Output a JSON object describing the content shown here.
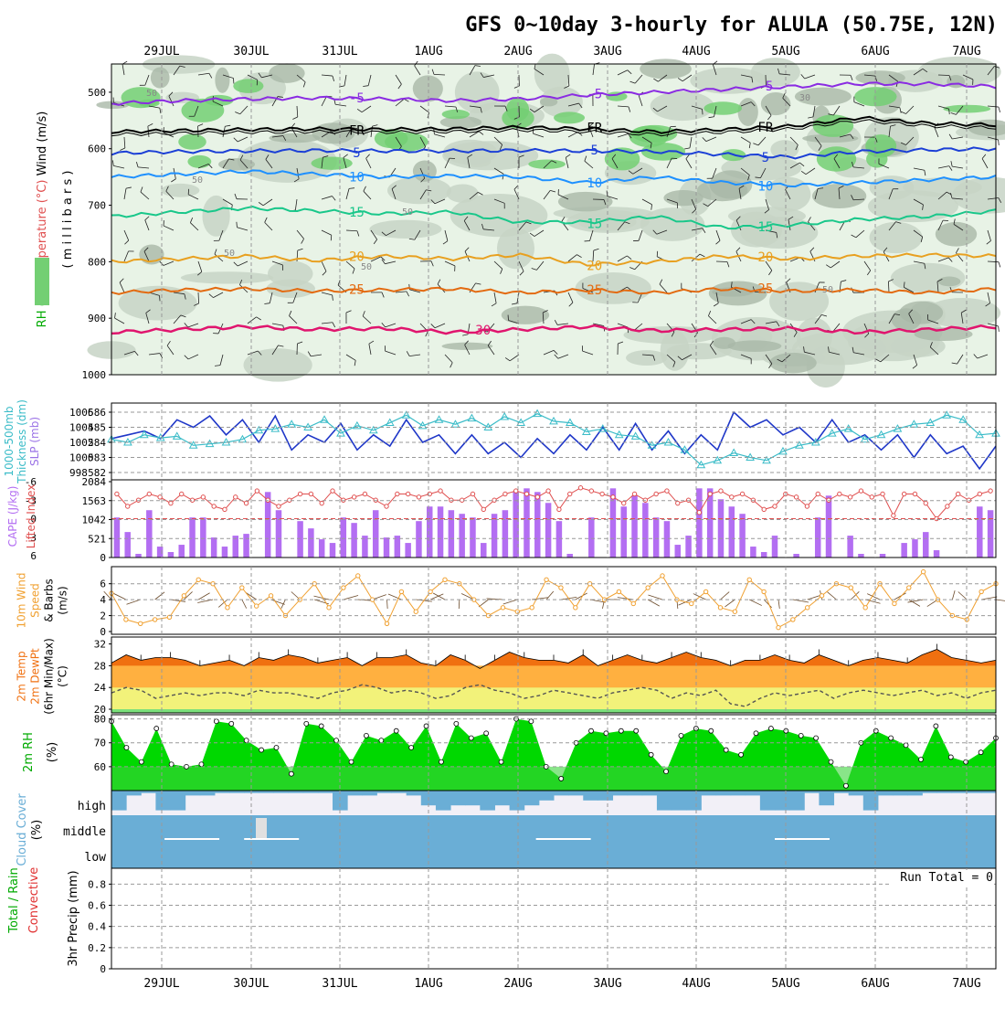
{
  "title": "GFS 0~10day 3-hourly for ALULA (50.75E, 12N)",
  "dates": [
    "29JUL",
    "30JUL",
    "31JUL",
    "1AUG",
    "2AUG",
    "3AUG",
    "4AUG",
    "5AUG",
    "6AUG",
    "7AUG"
  ],
  "colors": {
    "rh_light": "#e8f3e6",
    "rh_mid": "#c7d4c5",
    "rh_dark": "#a9b8a7",
    "rh_green": "#73cf73",
    "temp_m5": "#8a2be2",
    "temp_5": "#1b3fd6",
    "temp_10": "#1e90ff",
    "temp_15": "#19c78a",
    "temp_20": "#e8a020",
    "temp_25": "#e36a10",
    "temp_30": "#e0156e",
    "slp": "#1f37c8",
    "thickness": "#3bbcc8",
    "lifted": "#e05050",
    "cape": "#b36ef2",
    "wind": "#f0a030",
    "tmp_top": "#f07010",
    "tmp_mid": "#ffb040",
    "tmp_low": "#f2f27a",
    "rh2m": "#00d800",
    "cloud": "#6aaed6",
    "cloud_bg": "#f2f0f7"
  },
  "chart_data": [
    {
      "type": "heatmap",
      "id": "upper-air",
      "ylabel_parts": [
        "RH (%)",
        "Temperature (°C)",
        "Wind (m/s)"
      ],
      "yunit": "( m i l l i b a r s )",
      "y_ticks": [
        "500",
        "600",
        "700",
        "800",
        "900",
        "1000"
      ],
      "ylim": [
        1000,
        450
      ],
      "isotherms": [
        {
          "label": "-5",
          "color": "#8a2be2",
          "p": [
            520,
            515,
            512,
            510,
            512,
            515,
            512,
            505,
            500,
            495,
            490,
            485,
            485,
            490
          ]
        },
        {
          "label": "FR",
          "color": "#000000",
          "p": [
            570,
            568,
            566,
            565,
            566,
            565,
            562,
            565,
            570,
            566,
            560,
            545,
            555,
            558
          ]
        },
        {
          "label": "5",
          "color": "#1b3fd6",
          "p": [
            608,
            605,
            604,
            603,
            604,
            604,
            603,
            604,
            605,
            610,
            615,
            605,
            602,
            600
          ]
        },
        {
          "label": "10",
          "color": "#1e90ff",
          "p": [
            650,
            645,
            640,
            645,
            650,
            648,
            650,
            660,
            650,
            660,
            665,
            660,
            655,
            650
          ]
        },
        {
          "label": "15",
          "color": "#19c78a",
          "p": [
            720,
            712,
            705,
            710,
            715,
            712,
            730,
            730,
            720,
            740,
            735,
            725,
            720,
            710
          ]
        },
        {
          "label": "20",
          "color": "#e8a020",
          "p": [
            800,
            795,
            790,
            798,
            790,
            795,
            788,
            805,
            800,
            790,
            795,
            790,
            788,
            790
          ]
        },
        {
          "label": "25",
          "color": "#e36a10",
          "p": [
            855,
            850,
            848,
            852,
            850,
            848,
            855,
            850,
            855,
            848,
            852,
            850,
            855,
            848
          ]
        },
        {
          "label": "30",
          "color": "#e0156e",
          "p": [
            925,
            920,
            915,
            920,
            918,
            925,
            920,
            915,
            922,
            920,
            918,
            925,
            920,
            915
          ]
        }
      ],
      "rh_labels": [
        "50",
        "50",
        "50",
        "50",
        "50",
        "30",
        "50"
      ]
    },
    {
      "type": "line",
      "id": "slp-thickness",
      "ylabel_parts": [
        "1000-500mb",
        "Thickness (dm)",
        "SLP (mb)"
      ],
      "left_ticks": [
        "586",
        "585",
        "584",
        "583",
        "582"
      ],
      "right_ticks": [
        "1006",
        "1004",
        "1002",
        "1000",
        "998"
      ],
      "series": [
        {
          "key": "slp",
          "values": [
            1002.5,
            1003.0,
            1003.5,
            1002.5,
            1005.0,
            1004.0,
            1005.5,
            1003.0,
            1005.0,
            1002.0,
            1005.5,
            1001.0,
            1003.0,
            1002.0,
            1004.5,
            1001.0,
            1003.0,
            1001.5,
            1005.0,
            1002.0,
            1003.0,
            1000.5,
            1003.0,
            1000.5,
            1002.0,
            1000.0,
            1002.5,
            1000.5,
            1003.0,
            1001.0,
            1004.0,
            1001.0,
            1004.5,
            1001.0,
            1003.5,
            1000.5,
            1003.0,
            1001.0,
            1006.0,
            1004.0,
            1005.0,
            1003.0,
            1004.0,
            1002.0,
            1005.0,
            1002.0,
            1003.0,
            1001.0,
            1003.0,
            1000.0,
            1003.0,
            1000.5,
            1001.5,
            998.5,
            1001.5
          ]
        },
        {
          "key": "thickness",
          "values": [
            584.2,
            584.0,
            584.5,
            584.3,
            584.4,
            583.8,
            583.9,
            584.0,
            584.2,
            584.8,
            584.9,
            585.2,
            585.0,
            585.5,
            584.6,
            585.1,
            584.8,
            585.3,
            585.8,
            585.1,
            585.5,
            585.2,
            585.6,
            585.0,
            585.7,
            585.3,
            585.9,
            585.4,
            585.3,
            584.7,
            584.9,
            584.5,
            584.4,
            583.8,
            584.0,
            583.5,
            582.5,
            582.8,
            583.3,
            583.0,
            582.8,
            583.4,
            583.8,
            584.0,
            584.6,
            584.9,
            584.2,
            584.5,
            584.9,
            585.2,
            585.3,
            585.8,
            585.5,
            584.5,
            584.6
          ]
        }
      ]
    },
    {
      "type": "bar",
      "id": "cape-lifted",
      "ylabel_parts": [
        "CAPE (J/kg)",
        "Lifted Index"
      ],
      "left_ticks": [
        "2084",
        "1563",
        "1042",
        "521",
        "0"
      ],
      "right_ticks": [
        "-6",
        "-3",
        "0",
        "3",
        "6"
      ],
      "cape": [
        1100,
        700,
        100,
        1300,
        300,
        150,
        350,
        1100,
        1100,
        550,
        300,
        600,
        650,
        0,
        1800,
        1300,
        0,
        1000,
        800,
        500,
        400,
        1100,
        950,
        600,
        1300,
        550,
        600,
        400,
        1000,
        1400,
        1400,
        1300,
        1200,
        1100,
        400,
        1200,
        1300,
        1800,
        1900,
        1800,
        1500,
        1000,
        100,
        0,
        1100,
        0,
        1900,
        1400,
        1700,
        1500,
        1100,
        1000,
        350,
        600,
        1900,
        1900,
        1600,
        1400,
        1200,
        300,
        150,
        600,
        0,
        100,
        0,
        1100,
        1700,
        0,
        600,
        100,
        0,
        100,
        0,
        400,
        500,
        700,
        200,
        0,
        0,
        0,
        1400,
        1300
      ],
      "lifted": [
        -4.0,
        -2.0,
        -3.0,
        -4.0,
        -3.5,
        -2.5,
        -4.0,
        -3.0,
        -3.5,
        -2.0,
        -1.5,
        -3.5,
        -2.5,
        -4.5,
        -3.0,
        -2.0,
        -3.0,
        -4.0,
        -4.0,
        -2.5,
        -4.5,
        -3.0,
        -3.5,
        -4.0,
        -3.0,
        -2.0,
        -4.0,
        -4.0,
        -3.5,
        -4.0,
        -4.5,
        -3.0,
        -3.0,
        -4.0,
        -1.5,
        -3.0,
        -4.0,
        -4.5,
        -4.0,
        -3.5,
        -4.5,
        -1.5,
        -4.0,
        -5.0,
        -4.5,
        -4.0,
        -3.5,
        -2.5,
        -4.0,
        -3.0,
        -4.0,
        -4.5,
        -2.5,
        -3.0,
        -1.0,
        -4.0,
        -4.5,
        -3.5,
        -4.0,
        -3.0,
        -1.5,
        -2.0,
        -4.0,
        -3.5,
        -2.0,
        -4.0,
        -3.0,
        -4.0,
        -3.5,
        -4.5,
        -3.5,
        -4.0,
        -0.5,
        -4.0,
        -4.0,
        -2.5,
        0.0,
        -2.0,
        -4.0,
        -3.0,
        -4.0,
        -4.5
      ]
    },
    {
      "type": "line",
      "id": "wind10m",
      "ylabel_parts": [
        "10m Wind",
        "Speed",
        "& Barbs",
        "(m/s)"
      ],
      "left_ticks": [
        "6",
        "4",
        "2",
        "0"
      ],
      "values": [
        4.8,
        1.5,
        1.0,
        1.5,
        1.8,
        4.5,
        6.5,
        6.0,
        3.0,
        5.5,
        3.2,
        4.5,
        2.0,
        4.0,
        6.0,
        3.0,
        5.5,
        7.0,
        4.0,
        1.0,
        5.0,
        2.5,
        5.0,
        6.5,
        6.0,
        4.0,
        2.0,
        3.0,
        2.5,
        3.0,
        6.5,
        5.5,
        3.0,
        6.0,
        4.0,
        5.0,
        3.5,
        5.5,
        7.0,
        4.0,
        3.5,
        5.0,
        3.0,
        2.5,
        6.5,
        5.0,
        0.5,
        1.5,
        3.0,
        4.5,
        6.0,
        5.5,
        3.0,
        6.0,
        3.5,
        5.5,
        7.5,
        4.0,
        2.0,
        1.5,
        5.0,
        6.0
      ]
    },
    {
      "type": "area",
      "id": "temp2m",
      "ylabel_parts": [
        "2m Temp",
        "2m DewPt",
        "(6hr Min/Max)",
        "(°C)"
      ],
      "left_ticks": [
        "32",
        "28",
        "24",
        "20"
      ],
      "temp": [
        28.5,
        30.0,
        29.0,
        29.5,
        29.5,
        29.0,
        28.0,
        28.5,
        29.0,
        28.0,
        29.5,
        29.0,
        30.0,
        29.5,
        28.5,
        29.0,
        29.5,
        28.0,
        29.5,
        29.5,
        30.0,
        28.5,
        28.0,
        30.0,
        29.0,
        27.5,
        29.0,
        30.5,
        29.5,
        29.0,
        29.0,
        28.5,
        30.0,
        28.0,
        29.0,
        30.0,
        29.0,
        28.5,
        29.5,
        30.5,
        29.5,
        29.0,
        28.0,
        29.0,
        29.0,
        30.0,
        29.0,
        28.5,
        30.0,
        29.0,
        28.0,
        29.0,
        29.5,
        29.0,
        28.5,
        30.0,
        31.0,
        29.5,
        29.0,
        28.5,
        29.0
      ],
      "dewpt": [
        23.0,
        24.0,
        23.5,
        22.0,
        22.5,
        23.0,
        22.5,
        23.0,
        23.0,
        22.5,
        23.5,
        23.0,
        23.0,
        22.5,
        22.0,
        23.0,
        23.5,
        24.5,
        24.0,
        23.0,
        23.5,
        23.0,
        22.0,
        22.5,
        24.0,
        24.5,
        23.5,
        23.0,
        22.0,
        22.5,
        23.5,
        23.0,
        22.5,
        22.0,
        23.0,
        23.5,
        24.0,
        23.5,
        22.0,
        23.0,
        22.5,
        23.5,
        21.0,
        20.5,
        22.0,
        23.0,
        22.5,
        23.0,
        23.5,
        22.0,
        23.0,
        23.5,
        23.0,
        22.5,
        23.0,
        23.5,
        22.5,
        23.0,
        22.0,
        23.0,
        23.5
      ]
    },
    {
      "type": "area",
      "id": "rh2m",
      "ylabel_parts": [
        "2m RH",
        "(%)"
      ],
      "left_ticks": [
        "80",
        "70",
        "60"
      ],
      "values": [
        79,
        68,
        62,
        76,
        61,
        60,
        61,
        79,
        78,
        71,
        67,
        68,
        57,
        78,
        77,
        71,
        62,
        73,
        71,
        75,
        68,
        77,
        62,
        78,
        72,
        74,
        62,
        80,
        79,
        60,
        55,
        70,
        75,
        74,
        75,
        75,
        65,
        58,
        73,
        76,
        75,
        67,
        65,
        74,
        76,
        75,
        73,
        72,
        62,
        52,
        70,
        75,
        72,
        69,
        63,
        77,
        64,
        62,
        66,
        72
      ]
    },
    {
      "type": "area",
      "id": "cloud",
      "ylabel_parts": [
        "Cloud Cover",
        "(%)"
      ],
      "levels": [
        "high",
        "middle",
        "low"
      ],
      "high": [
        80,
        20,
        10,
        80,
        80,
        20,
        20,
        10,
        10,
        10,
        10,
        10,
        10,
        10,
        10,
        80,
        20,
        20,
        10,
        10,
        20,
        60,
        80,
        60,
        60,
        80,
        60,
        80,
        60,
        40,
        20,
        20,
        40,
        40,
        20,
        20,
        20,
        80,
        80,
        80,
        20,
        20,
        20,
        20,
        80,
        80,
        80,
        10,
        60,
        10,
        20,
        80,
        20,
        20,
        20,
        10,
        10,
        10,
        10,
        10
      ]
    },
    {
      "type": "bar",
      "id": "precip",
      "ylabel_parts": [
        "3hr Precip (mm)",
        "Total / Rain",
        "Convective"
      ],
      "left_ticks": [
        "0.8",
        "0.6",
        "0.4",
        "0.2",
        "0"
      ],
      "run_total": "Run Total = 0"
    }
  ]
}
